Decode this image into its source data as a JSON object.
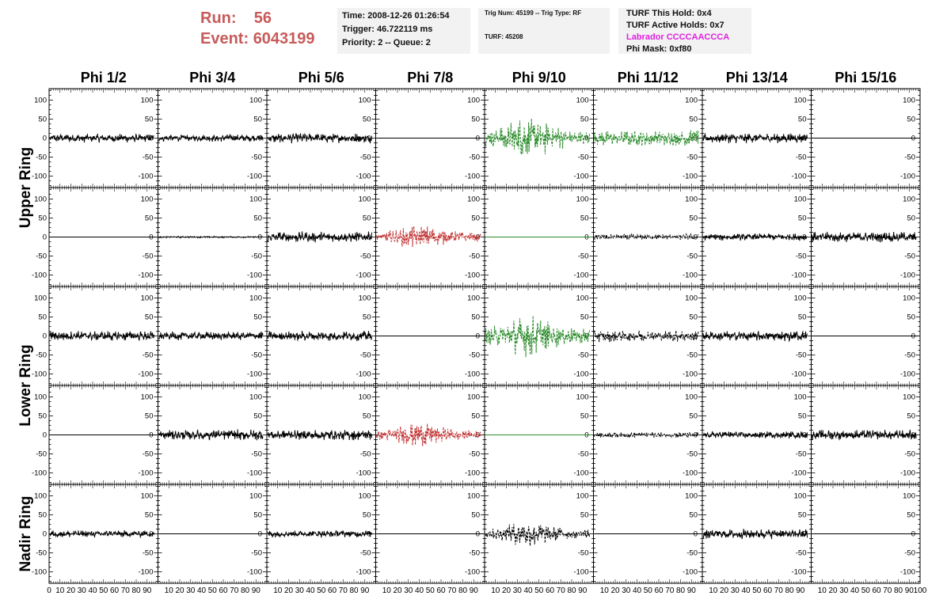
{
  "header": {
    "run_label": "Run:",
    "run_value": "56",
    "event_label": "Event:",
    "event_value": "6043199",
    "time": "Time: 2008-12-26 01:26:54",
    "trigger": "Trigger: 46.722119 ms",
    "priority": "Priority: 2 -- Queue: 2",
    "trig_num": "Trig Num: 45199 -- Trig Type: RF",
    "turf_id": "TURF: 45208",
    "turf_this_hold": "TURF This Hold: 0x4",
    "turf_active_holds": "TURF Active Holds: 0x7",
    "labrador": "Labrador CCCCAACCCA",
    "phi_mask": "Phi Mask: 0xf80"
  },
  "colors": {
    "run_text": "#c85a5a",
    "labrador_text": "#e020e0",
    "trace_black": "#000000",
    "trace_green": "#2a8a2a",
    "trace_red": "#c03030",
    "info_bg": "#f2f2f2"
  },
  "chart_data": {
    "type": "line",
    "columns": [
      "Phi 1/2",
      "Phi 3/4",
      "Phi 5/6",
      "Phi 7/8",
      "Phi 9/10",
      "Phi 11/12",
      "Phi 13/14",
      "Phi 15/16"
    ],
    "ring_labels": [
      {
        "label": "Upper Ring",
        "rows": [
          0,
          1
        ]
      },
      {
        "label": "Lower Ring",
        "rows": [
          2,
          3
        ]
      },
      {
        "label": "Nadir Ring",
        "rows": [
          4
        ]
      }
    ],
    "ylim": [
      -130,
      130
    ],
    "yticks": [
      -100,
      -50,
      0,
      50,
      100
    ],
    "xlim": [
      0,
      100
    ],
    "xtick_labels_per_panel": [
      "0",
      "10",
      "20",
      "30",
      "40",
      "50",
      "60",
      "70",
      "80",
      "90",
      "100"
    ],
    "panels": [
      [
        {
          "amp": 12,
          "style": "solid",
          "color": "black"
        },
        {
          "amp": 10,
          "style": "solid",
          "color": "black"
        },
        {
          "amp": 14,
          "style": "solid",
          "color": "black"
        },
        {
          "amp": 0,
          "style": "flat",
          "color": "black"
        },
        {
          "amp": 60,
          "style": "dashed",
          "color": "green"
        },
        {
          "amp": 22,
          "style": "dashed",
          "color": "green"
        },
        {
          "amp": 14,
          "style": "solid",
          "color": "black"
        },
        {
          "amp": 0,
          "style": "flat",
          "color": "black"
        }
      ],
      [
        {
          "amp": 0,
          "style": "flat",
          "color": "black"
        },
        {
          "amp": 2,
          "style": "solid",
          "color": "black"
        },
        {
          "amp": 15,
          "style": "solid",
          "color": "black"
        },
        {
          "amp": 35,
          "style": "dashed",
          "color": "red"
        },
        {
          "amp": 0,
          "style": "flat",
          "color": "green"
        },
        {
          "amp": 8,
          "style": "dashed",
          "color": "black"
        },
        {
          "amp": 10,
          "style": "solid",
          "color": "black"
        },
        {
          "amp": 14,
          "style": "solid",
          "color": "black"
        }
      ],
      [
        {
          "amp": 14,
          "style": "solid",
          "color": "black"
        },
        {
          "amp": 12,
          "style": "solid",
          "color": "black"
        },
        {
          "amp": 14,
          "style": "solid",
          "color": "black"
        },
        {
          "amp": 0,
          "style": "flat",
          "color": "black"
        },
        {
          "amp": 60,
          "style": "dashed",
          "color": "green"
        },
        {
          "amp": 16,
          "style": "dashed",
          "color": "black"
        },
        {
          "amp": 14,
          "style": "solid",
          "color": "black"
        },
        {
          "amp": 0,
          "style": "flat",
          "color": "black"
        }
      ],
      [
        {
          "amp": 0,
          "style": "flat",
          "color": "black"
        },
        {
          "amp": 15,
          "style": "solid",
          "color": "black"
        },
        {
          "amp": 15,
          "style": "solid",
          "color": "black"
        },
        {
          "amp": 35,
          "style": "dashed",
          "color": "red"
        },
        {
          "amp": 0,
          "style": "flat",
          "color": "green"
        },
        {
          "amp": 8,
          "style": "dashed",
          "color": "black"
        },
        {
          "amp": 10,
          "style": "solid",
          "color": "black"
        },
        {
          "amp": 14,
          "style": "solid",
          "color": "black"
        }
      ],
      [
        {
          "amp": 10,
          "style": "solid",
          "color": "black"
        },
        {
          "amp": 0,
          "style": "flat",
          "color": "black"
        },
        {
          "amp": 10,
          "style": "solid",
          "color": "black"
        },
        {
          "amp": 0,
          "style": "flat",
          "color": "black"
        },
        {
          "amp": 35,
          "style": "dashed",
          "color": "black"
        },
        {
          "amp": 0,
          "style": "flat",
          "color": "black"
        },
        {
          "amp": 14,
          "style": "solid",
          "color": "black"
        },
        {
          "amp": 0,
          "style": "flat",
          "color": "black"
        }
      ]
    ]
  }
}
